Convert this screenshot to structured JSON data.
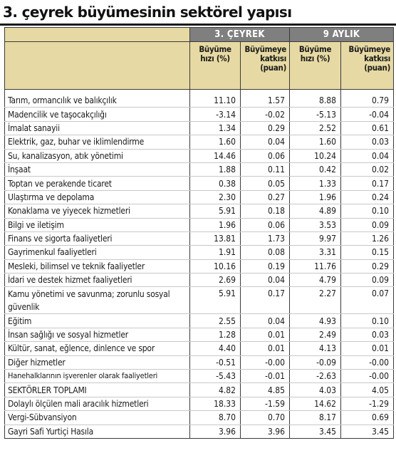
{
  "title": "3. çeyrek büyümesinin sektörel yapısı",
  "groups": [
    "3. ÇEYREK",
    "9 AYLIK"
  ],
  "subheaders": {
    "q3_growth": [
      "Büyüme",
      "hızı (%)"
    ],
    "q3_contrib": [
      "Büyümeye",
      "katkısı",
      "(puan)"
    ],
    "m9_growth": [
      "Büyüme",
      "hızı (%)"
    ],
    "m9_contrib": [
      "Büyümeye",
      "katkısı",
      "(puan)"
    ]
  },
  "rows": [
    {
      "label": "Tarım, ormancılık ve balıkçılık",
      "q3_growth": "11.10",
      "q3_contrib": "1.57",
      "m9_growth": "8.88",
      "m9_contrib": "0.79"
    },
    {
      "label": "Madencilik ve taşocakçılığı",
      "q3_growth": "-3.14",
      "q3_contrib": "-0.02",
      "m9_growth": "-5.13",
      "m9_contrib": "-0.04"
    },
    {
      "label": "İmalat sanayii",
      "q3_growth": "1.34",
      "q3_contrib": "0.29",
      "m9_growth": "2.52",
      "m9_contrib": "0.61"
    },
    {
      "label": "Elektrik, gaz, buhar ve iklimlendirme",
      "q3_growth": "1.60",
      "q3_contrib": "0.04",
      "m9_growth": "1.60",
      "m9_contrib": "0.03"
    },
    {
      "label": "Su, kanalizasyon, atık yönetimi",
      "q3_growth": "14.46",
      "q3_contrib": "0.06",
      "m9_growth": "10.24",
      "m9_contrib": "0.04"
    },
    {
      "label": "İnşaat",
      "q3_growth": "1.88",
      "q3_contrib": "0.11",
      "m9_growth": "0.42",
      "m9_contrib": "0.02"
    },
    {
      "label": "Toptan ve perakende ticaret",
      "q3_growth": "0.38",
      "q3_contrib": "0.05",
      "m9_growth": "1.33",
      "m9_contrib": "0.17"
    },
    {
      "label": "Ulaştırma ve depolama",
      "q3_growth": "2.30",
      "q3_contrib": "0.27",
      "m9_growth": "1.96",
      "m9_contrib": "0.24"
    },
    {
      "label": "Konaklama ve yiyecek hizmetleri",
      "q3_growth": "5.91",
      "q3_contrib": "0.18",
      "m9_growth": "4.89",
      "m9_contrib": "0.10"
    },
    {
      "label": "Bilgi ve iletişim",
      "q3_growth": "1.96",
      "q3_contrib": "0.06",
      "m9_growth": "3.53",
      "m9_contrib": "0.09"
    },
    {
      "label": "Finans ve sigorta faaliyetleri",
      "q3_growth": "13.81",
      "q3_contrib": "1.73",
      "m9_growth": "9.97",
      "m9_contrib": "1.26"
    },
    {
      "label": "Gayrimenkul faaliyetleri",
      "q3_growth": "1.91",
      "q3_contrib": "0.08",
      "m9_growth": "3.31",
      "m9_contrib": "0.15"
    },
    {
      "label": "Mesleki, bilimsel ve teknik faaliyetler",
      "q3_growth": "10.16",
      "q3_contrib": "0.19",
      "m9_growth": "11.76",
      "m9_contrib": "0.29"
    },
    {
      "label": "İdari ve destek hizmet faaliyetleri",
      "q3_growth": "2.69",
      "q3_contrib": "0.04",
      "m9_growth": "4.79",
      "m9_contrib": "0.09"
    },
    {
      "label": "Kamu yönetimi ve savunma; zorunlu sosyal güvenlik",
      "q3_growth": "5.91",
      "q3_contrib": "0.17",
      "m9_growth": "2.27",
      "m9_contrib": "0.07"
    },
    {
      "label": "Eğitim",
      "q3_growth": "2.55",
      "q3_contrib": "0.04",
      "m9_growth": "4.93",
      "m9_contrib": "0.10"
    },
    {
      "label": "İnsan sağlığı ve sosyal hizmetler",
      "q3_growth": "1.28",
      "q3_contrib": "0.01",
      "m9_growth": "2.49",
      "m9_contrib": "0.03"
    },
    {
      "label": "Kültür, sanat, eğlence, dinlence ve spor",
      "q3_growth": "4.40",
      "q3_contrib": "0.01",
      "m9_growth": "4.13",
      "m9_contrib": "0.01"
    },
    {
      "label": "Diğer hizmetler",
      "q3_growth": "-0.51",
      "q3_contrib": "-0.00",
      "m9_growth": "-0.09",
      "m9_contrib": "-0.00"
    },
    {
      "label": "Hanehalklarının işverenler olarak faaliyetleri",
      "q3_growth": "-5.43",
      "q3_contrib": "-0.01",
      "m9_growth": "-2.63",
      "m9_contrib": "-0.00"
    },
    {
      "label": "SEKTÖRLER TOPLAMI",
      "q3_growth": "4.82",
      "q3_contrib": "4.85",
      "m9_growth": "4.03",
      "m9_contrib": "4.05"
    },
    {
      "label": "Dolaylı ölçülen mali aracılık hizmetleri",
      "q3_growth": "18.33",
      "q3_contrib": "-1.59",
      "m9_growth": "14.62",
      "m9_contrib": "-1.29"
    },
    {
      "label": "Vergi-Sübvansiyon",
      "q3_growth": "8.70",
      "q3_contrib": "0.70",
      "m9_growth": "8.17",
      "m9_contrib": "0.69"
    },
    {
      "label": "Gayri Safi Yurtiçi Hasıla",
      "q3_growth": "3.96",
      "q3_contrib": "3.96",
      "m9_growth": "3.45",
      "m9_contrib": "3.45"
    }
  ]
}
